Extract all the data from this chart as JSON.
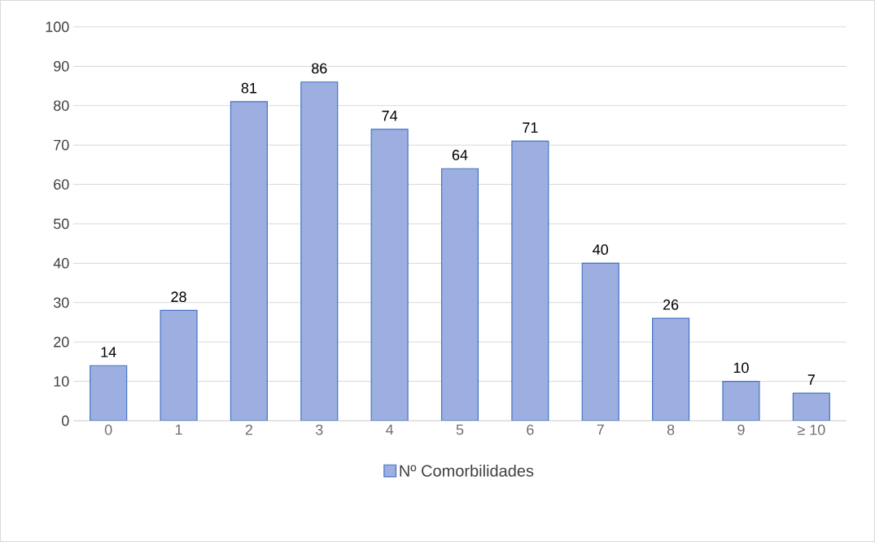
{
  "chart_data": {
    "type": "bar",
    "categories": [
      "0",
      "1",
      "2",
      "3",
      "4",
      "5",
      "6",
      "7",
      "8",
      "9",
      "≥ 10"
    ],
    "series": [
      {
        "name": "Nº Comorbilidades",
        "color": "#9daee0",
        "values": [
          14,
          28,
          81,
          86,
          74,
          64,
          71,
          40,
          26,
          10,
          7
        ]
      }
    ],
    "ylim": [
      0,
      100
    ],
    "yticks": [
      0,
      10,
      20,
      30,
      40,
      50,
      60,
      70,
      80,
      90,
      100
    ],
    "grid": "y",
    "legend": "bottom",
    "data_labels": true
  }
}
